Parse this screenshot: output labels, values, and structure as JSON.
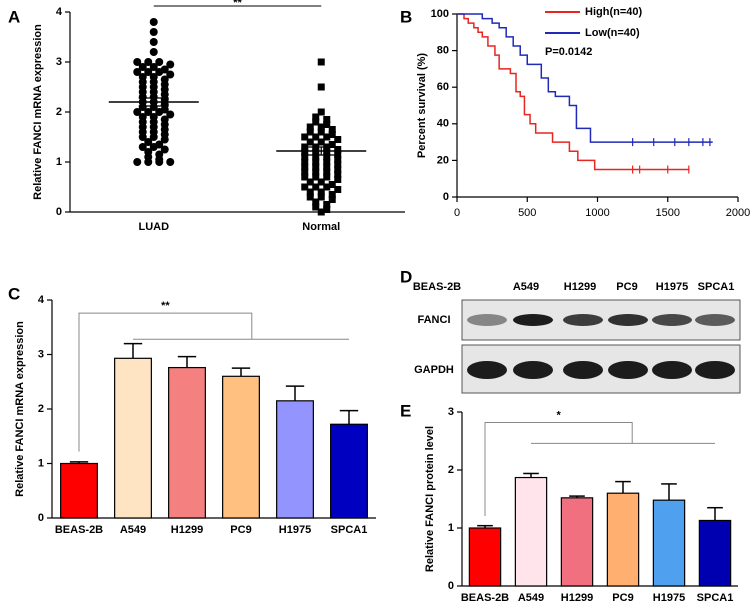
{
  "chart_data": [
    {
      "type": "strip",
      "panel_label": "A",
      "y_label": "Relative FANCI mRNA expression",
      "categories": [
        "LUAD",
        "Normal"
      ],
      "groups": [
        {
          "marker": "circle",
          "color": "#000000",
          "mean": 2.2,
          "sem": 0.08,
          "values": [
            3.8,
            3.6,
            3.4,
            3.2,
            3.0,
            3.0,
            3.0,
            2.95,
            2.9,
            2.9,
            2.85,
            2.8,
            2.8,
            2.8,
            2.75,
            2.7,
            2.7,
            2.65,
            2.6,
            2.6,
            2.55,
            2.5,
            2.5,
            2.45,
            2.4,
            2.4,
            2.35,
            2.3,
            2.3,
            2.25,
            2.2,
            2.2,
            2.15,
            2.1,
            2.1,
            2.05,
            2.0,
            2.0,
            2.0,
            1.95,
            1.9,
            1.9,
            1.85,
            1.8,
            1.8,
            1.75,
            1.7,
            1.7,
            1.65,
            1.6,
            1.6,
            1.55,
            1.5,
            1.5,
            1.45,
            1.4,
            1.35,
            1.3,
            1.3,
            1.25,
            1.2,
            1.15,
            1.1,
            1.05,
            1.0,
            1.0,
            1.0,
            1.0
          ]
        },
        {
          "marker": "square",
          "color": "#000000",
          "mean": 1.22,
          "sem": 0.08,
          "values": [
            3.0,
            2.5,
            2.0,
            1.9,
            1.85,
            1.8,
            1.75,
            1.7,
            1.7,
            1.65,
            1.6,
            1.6,
            1.55,
            1.5,
            1.5,
            1.5,
            1.45,
            1.4,
            1.4,
            1.35,
            1.3,
            1.3,
            1.3,
            1.25,
            1.2,
            1.2,
            1.2,
            1.15,
            1.1,
            1.1,
            1.1,
            1.05,
            1.0,
            1.0,
            1.0,
            0.95,
            0.9,
            0.9,
            0.9,
            0.85,
            0.8,
            0.8,
            0.8,
            0.75,
            0.7,
            0.7,
            0.7,
            0.65,
            0.6,
            0.6,
            0.55,
            0.5,
            0.5,
            0.5,
            0.45,
            0.4,
            0.4,
            0.35,
            0.3,
            0.3,
            0.25,
            0.2,
            0.15,
            0.1,
            0.05,
            0.0
          ]
        }
      ],
      "significance": "**",
      "ylim": [
        0,
        4
      ],
      "yticks": [
        0,
        1,
        2,
        3,
        4
      ]
    },
    {
      "type": "survival",
      "panel_label": "B",
      "y_label": "Percent survival (%)",
      "annotation": "P=0.0142",
      "series": [
        {
          "name": "High(n=40)",
          "color": "#e8251f",
          "x": [
            0,
            50,
            50,
            80,
            80,
            120,
            120,
            150,
            150,
            180,
            180,
            220,
            220,
            270,
            270,
            300,
            300,
            380,
            380,
            420,
            420,
            450,
            450,
            480,
            480,
            520,
            520,
            560,
            560,
            680,
            680,
            800,
            800,
            860,
            860,
            980,
            980,
            1650
          ],
          "y": [
            100,
            100,
            97.5,
            97.5,
            95,
            95,
            92.5,
            92.5,
            90,
            90,
            87.5,
            87.5,
            82.5,
            82.5,
            77.5,
            77.5,
            70,
            70,
            67.5,
            67.5,
            57.5,
            57.5,
            55,
            55,
            45,
            45,
            40,
            40,
            35,
            35,
            30,
            30,
            25,
            25,
            20,
            20,
            15,
            15
          ],
          "censored": {
            "x": [
              1250,
              1300,
              1500,
              1650
            ],
            "y": [
              15,
              15,
              15,
              15
            ]
          }
        },
        {
          "name": "Low(n=40)",
          "color": "#1f2ab8",
          "x": [
            0,
            180,
            180,
            250,
            250,
            300,
            300,
            350,
            350,
            400,
            400,
            450,
            450,
            500,
            500,
            600,
            600,
            650,
            650,
            700,
            700,
            800,
            800,
            850,
            850,
            950,
            950,
            1820
          ],
          "y": [
            100,
            100,
            97.5,
            97.5,
            95,
            95,
            92.5,
            92.5,
            87.5,
            87.5,
            82.5,
            82.5,
            77.5,
            77.5,
            72.5,
            72.5,
            65,
            65,
            57.5,
            57.5,
            55,
            55,
            50,
            50,
            37.5,
            37.5,
            30,
            30
          ],
          "censored": {
            "x": [
              1250,
              1400,
              1550,
              1650,
              1750,
              1800
            ],
            "y": [
              30,
              30,
              30,
              30,
              30,
              30
            ]
          }
        }
      ],
      "xlim": [
        0,
        2000
      ],
      "xticks": [
        0,
        500,
        1000,
        1500,
        2000
      ],
      "ylim": [
        0,
        100
      ],
      "yticks": [
        0,
        20,
        40,
        60,
        80,
        100
      ]
    },
    {
      "type": "bar",
      "panel_label": "C",
      "y_label": "Relative FANCI mRNA expression",
      "categories": [
        "BEAS-2B",
        "A549",
        "H1299",
        "PC9",
        "H1975",
        "SPCA1"
      ],
      "values": [
        1.0,
        2.93,
        2.76,
        2.6,
        2.15,
        1.72
      ],
      "errors": [
        0.03,
        0.27,
        0.2,
        0.15,
        0.27,
        0.25
      ],
      "colors": [
        "#ff0000",
        "#ffe4c4",
        "#f48080",
        "#ffc080",
        "#9494ff",
        "#0000c0"
      ],
      "significance": "**",
      "ylim": [
        0,
        4
      ],
      "yticks": [
        0,
        1,
        2,
        3,
        4
      ]
    },
    {
      "type": "blot",
      "panel_label": "D",
      "lanes": [
        "BEAS-2B",
        "A549",
        "H1299",
        "PC9",
        "H1975",
        "SPCA1"
      ],
      "rows": [
        "FANCI",
        "GAPDH"
      ]
    },
    {
      "type": "bar",
      "panel_label": "E",
      "y_label": "Relative FANCI protein level",
      "categories": [
        "BEAS-2B",
        "A549",
        "H1299",
        "PC9",
        "H1975",
        "SPCA1"
      ],
      "values": [
        1.0,
        1.87,
        1.52,
        1.6,
        1.48,
        1.13
      ],
      "errors": [
        0.04,
        0.07,
        0.03,
        0.2,
        0.28,
        0.22
      ],
      "colors": [
        "#ff0000",
        "#ffe4ec",
        "#f07080",
        "#ffb070",
        "#50a0f0",
        "#0000b0"
      ],
      "significance": "*",
      "ylim": [
        0,
        3
      ],
      "yticks": [
        0,
        1,
        2,
        3
      ]
    }
  ]
}
